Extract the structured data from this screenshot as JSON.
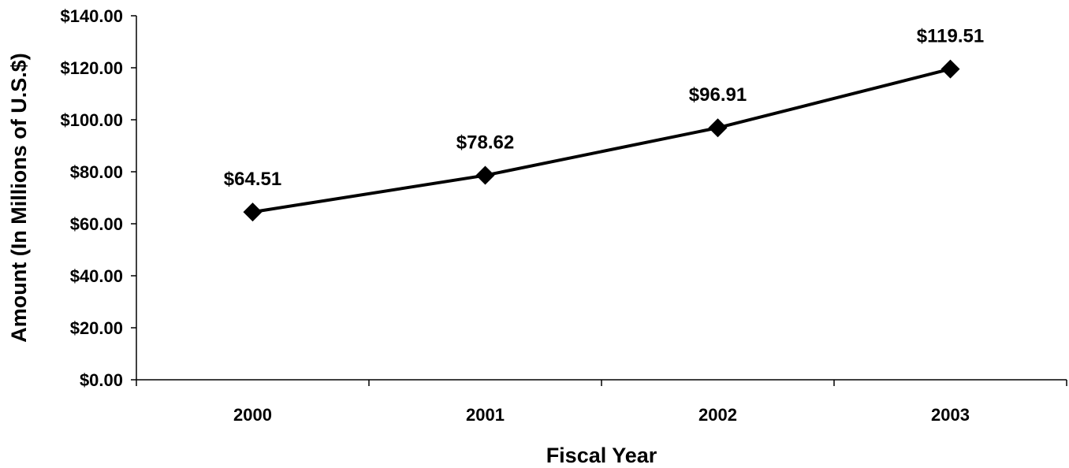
{
  "chart_data": {
    "type": "line",
    "categories": [
      "2000",
      "2001",
      "2002",
      "2003"
    ],
    "series": [
      {
        "values": [
          64.51,
          78.62,
          96.91,
          119.51
        ]
      }
    ],
    "data_labels": [
      "$64.51",
      "$78.62",
      "$96.91",
      "$119.51"
    ],
    "xlabel": "Fiscal Year",
    "ylabel": "Amount (In Millions of U.S.$)",
    "ylim": [
      0,
      140
    ],
    "y_ticks": [
      0,
      20,
      40,
      60,
      80,
      100,
      120,
      140
    ],
    "y_tick_labels": [
      "$0.00",
      "$20.00",
      "$40.00",
      "$60.00",
      "$80.00",
      "$100.00",
      "$120.00",
      "$140.00"
    ],
    "grid": false,
    "legend": "none",
    "marker": "diamond",
    "colors": {
      "line": "#000000",
      "marker": "#000000",
      "background": "#ffffff"
    }
  }
}
